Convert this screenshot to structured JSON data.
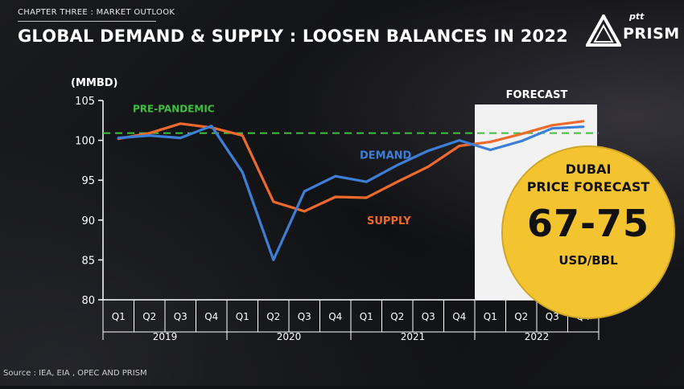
{
  "header": {
    "chapter": "CHAPTER THREE : MARKET OUTLOOK",
    "title": "GLOBAL DEMAND & SUPPLY : LOOSEN BALANCES IN 2022"
  },
  "logo": {
    "ptt": "ptt",
    "prism": "PRISM"
  },
  "badge": {
    "line1": "DUBAI",
    "line2": "PRICE FORECAST",
    "value": "67-75",
    "unit": "USD/BBL"
  },
  "source": "Source : IEA, EIA , OPEC AND PRISM",
  "colors": {
    "demand": "#3d7fd6",
    "supply": "#ee6a2c",
    "pre_pandemic": "#3fbf3f",
    "forecast_bg": "#f2f2f2",
    "badge": "#f4c430"
  },
  "chart_data": {
    "type": "line",
    "unit_label": "(MMBD)",
    "categories": [
      "Q1",
      "Q2",
      "Q3",
      "Q4",
      "Q1",
      "Q2",
      "Q3",
      "Q4",
      "Q1",
      "Q2",
      "Q3",
      "Q4",
      "Q1",
      "Q2",
      "Q3",
      "Q4"
    ],
    "years": [
      "2019",
      "2020",
      "2021",
      "2022"
    ],
    "ylim": [
      80,
      105
    ],
    "yticks": [
      80,
      85,
      90,
      95,
      100,
      105
    ],
    "series": [
      {
        "name": "DEMAND",
        "values": [
          100.3,
          100.6,
          100.3,
          101.8,
          96.0,
          85.0,
          93.6,
          95.5,
          94.8,
          96.9,
          98.7,
          100.0,
          98.8,
          99.9,
          101.5,
          101.7
        ]
      },
      {
        "name": "SUPPLY",
        "values": [
          100.2,
          100.9,
          102.1,
          101.6,
          100.6,
          92.3,
          91.1,
          92.9,
          92.8,
          94.8,
          96.7,
          99.3,
          99.8,
          100.8,
          101.9,
          102.4
        ]
      }
    ],
    "reference_line": {
      "label": "PRE-PANDEMIC",
      "value": 100.9
    },
    "forecast": {
      "label": "FORECAST",
      "start_index": 12,
      "end_index": 15
    }
  }
}
